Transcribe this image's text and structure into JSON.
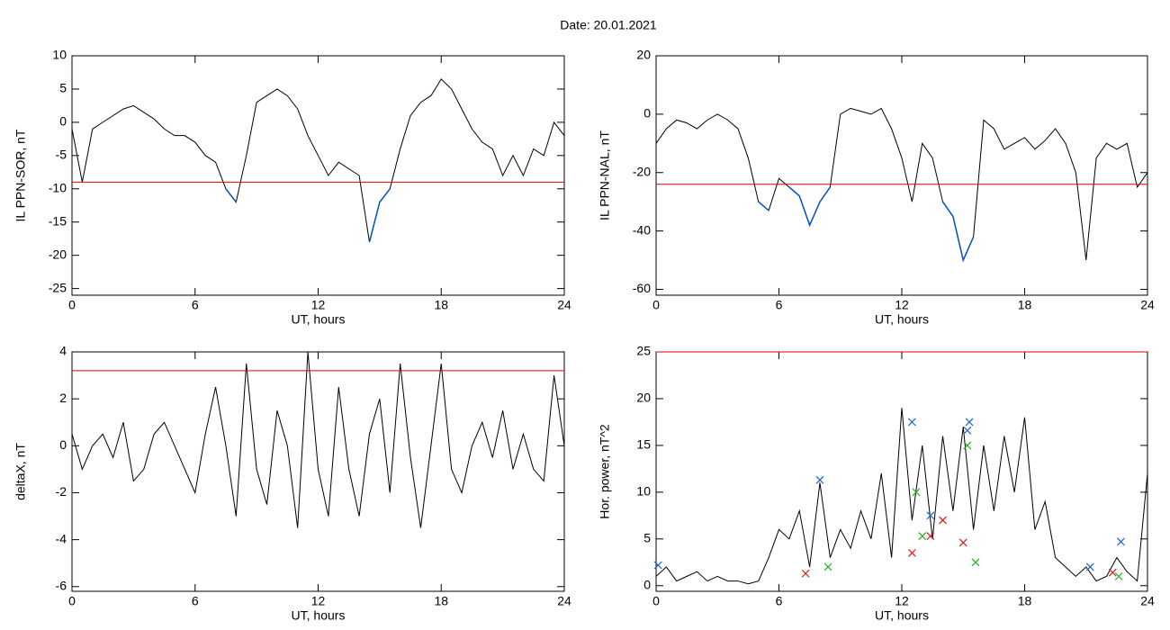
{
  "title": "Date:  20.01.2021",
  "chart_data": [
    {
      "type": "line",
      "ylabel": "IL PPN-SOR, nT",
      "xlabel": "UT, hours",
      "xlim": [
        0,
        24
      ],
      "xticks": [
        0,
        6,
        12,
        18,
        24
      ],
      "ylim": [
        -26,
        10
      ],
      "yticks": [
        -25,
        -20,
        -15,
        -10,
        -5,
        0,
        5,
        10
      ],
      "color": "#000000",
      "below_color": "#0050d0",
      "threshold": -9,
      "threshold_color": "#e00000",
      "x": [
        0,
        0.5,
        1,
        1.5,
        2,
        2.5,
        3,
        3.5,
        4,
        4.5,
        5,
        5.5,
        6,
        6.5,
        7,
        7.5,
        8,
        8.5,
        9,
        9.5,
        10,
        10.5,
        11,
        11.5,
        12,
        12.5,
        13,
        13.5,
        14,
        14.5,
        15,
        15.5,
        16,
        16.5,
        17,
        17.5,
        18,
        18.5,
        19,
        19.5,
        20,
        20.5,
        21,
        21.5,
        22,
        22.5,
        23,
        23.5,
        24
      ],
      "values": [
        -1,
        -9,
        -1,
        0,
        1,
        2,
        2.5,
        1.5,
        0.5,
        -1,
        -2,
        -2,
        -3,
        -5,
        -6,
        -10,
        -12,
        -5,
        3,
        4,
        5,
        4,
        2,
        -2,
        -5,
        -8,
        -6,
        -7,
        -8,
        -18,
        -12,
        -10,
        -4,
        1,
        3,
        4,
        6.5,
        5,
        2,
        -1,
        -3,
        -4,
        -8,
        -5,
        -8,
        -4,
        -5,
        0,
        -2
      ]
    },
    {
      "type": "line",
      "ylabel": "IL PPN-NAL, nT",
      "xlabel": "UT, hours",
      "xlim": [
        0,
        24
      ],
      "xticks": [
        0,
        6,
        12,
        18,
        24
      ],
      "ylim": [
        -62,
        20
      ],
      "yticks": [
        -60,
        -40,
        -20,
        0,
        20
      ],
      "color": "#000000",
      "below_color": "#0050d0",
      "threshold": -24,
      "threshold_color": "#e00000",
      "x": [
        0,
        0.5,
        1,
        1.5,
        2,
        2.5,
        3,
        3.5,
        4,
        4.5,
        5,
        5.5,
        6,
        6.5,
        7,
        7.5,
        8,
        8.5,
        9,
        9.5,
        10,
        10.5,
        11,
        11.5,
        12,
        12.5,
        13,
        13.5,
        14,
        14.5,
        15,
        15.5,
        16,
        16.5,
        17,
        17.5,
        18,
        18.5,
        19,
        19.5,
        20,
        20.5,
        21,
        21.5,
        22,
        22.5,
        23,
        23.5,
        24
      ],
      "values": [
        -10,
        -5,
        -2,
        -3,
        -5,
        -2,
        0,
        -2,
        -5,
        -15,
        -30,
        -33,
        -22,
        -25,
        -28,
        -38,
        -30,
        -25,
        0,
        2,
        1,
        0,
        2,
        -5,
        -15,
        -30,
        -10,
        -15,
        -30,
        -35,
        -50,
        -42,
        -2,
        -5,
        -12,
        -10,
        -8,
        -12,
        -9,
        -5,
        -10,
        -20,
        -50,
        -15,
        -10,
        -12,
        -10,
        -25,
        -20
      ]
    },
    {
      "type": "line",
      "ylabel": "deltaX, nT",
      "xlabel": "UT, hours",
      "xlim": [
        0,
        24
      ],
      "xticks": [
        0,
        6,
        12,
        18,
        24
      ],
      "ylim": [
        -6.2,
        4
      ],
      "yticks": [
        -6,
        -4,
        -2,
        0,
        2,
        4
      ],
      "color": "#000000",
      "threshold": 3.2,
      "threshold_color": "#e00000",
      "x": [
        0,
        0.5,
        1,
        1.5,
        2,
        2.5,
        3,
        3.5,
        4,
        4.5,
        5,
        5.5,
        6,
        6.5,
        7,
        7.5,
        8,
        8.5,
        9,
        9.5,
        10,
        10.5,
        11,
        11.5,
        12,
        12.5,
        13,
        13.5,
        14,
        14.5,
        15,
        15.5,
        16,
        16.5,
        17,
        17.5,
        18,
        18.5,
        19,
        19.5,
        20,
        20.5,
        21,
        21.5,
        22,
        22.5,
        23,
        23.5,
        24
      ],
      "values": [
        0.5,
        -1,
        0,
        0.5,
        -0.5,
        1,
        -1.5,
        -1,
        0.5,
        1,
        0,
        -1,
        -2,
        0.5,
        2.5,
        0,
        -3,
        3.5,
        -1,
        -2.5,
        1.5,
        0,
        -3.5,
        4,
        -1,
        -3,
        2.5,
        -1,
        -3,
        0.5,
        2,
        -2,
        3.5,
        -0.5,
        -3.5,
        0,
        3.5,
        -1,
        -2,
        0,
        1,
        -0.5,
        1.5,
        -1,
        0.5,
        -1,
        -1.5,
        3,
        0
      ]
    },
    {
      "type": "line",
      "ylabel": "Hor. power, nT^2",
      "xlabel": "UT, hours",
      "xlim": [
        0,
        24
      ],
      "xticks": [
        0,
        6,
        12,
        18,
        24
      ],
      "ylim": [
        -0.6,
        25
      ],
      "yticks": [
        0,
        5,
        10,
        15,
        20,
        25
      ],
      "color": "#000000",
      "threshold": 25,
      "threshold_color": "#e00000",
      "x": [
        0,
        0.5,
        1,
        1.5,
        2,
        2.5,
        3,
        3.5,
        4,
        4.5,
        5,
        5.5,
        6,
        6.5,
        7,
        7.5,
        8,
        8.5,
        9,
        9.5,
        10,
        10.5,
        11,
        11.5,
        12,
        12.5,
        13,
        13.5,
        14,
        14.5,
        15,
        15.5,
        16,
        16.5,
        17,
        17.5,
        18,
        18.5,
        19,
        19.5,
        20,
        20.5,
        21,
        21.5,
        22,
        22.5,
        23,
        23.5,
        24
      ],
      "values": [
        1,
        2,
        0.5,
        1,
        1.5,
        0.5,
        1,
        0.5,
        0.5,
        0.2,
        0.5,
        3,
        6,
        5,
        8,
        2,
        11,
        3,
        6,
        4,
        8,
        5,
        12,
        3,
        19,
        7,
        15,
        5,
        16,
        8,
        17,
        6,
        15,
        8,
        16,
        10,
        18,
        6,
        9,
        3,
        2,
        1,
        2,
        0.5,
        1,
        3,
        1.5,
        0.5,
        12
      ],
      "markers": [
        {
          "color": "#2060d0",
          "x": [
            0.1,
            8,
            12.5,
            13.4,
            15.2,
            15.3,
            21.2,
            22.7
          ],
          "y": [
            2.2,
            11.3,
            17.5,
            7.5,
            16.6,
            17.5,
            2,
            4.7
          ]
        },
        {
          "color": "#20b020",
          "x": [
            8.4,
            12.7,
            13,
            15.2,
            15.6,
            22.6
          ],
          "y": [
            2,
            10,
            5.3,
            15,
            2.5,
            1
          ]
        },
        {
          "color": "#d02020",
          "x": [
            7.3,
            12.5,
            13.4,
            14,
            15,
            22.3
          ],
          "y": [
            1.3,
            3.5,
            5.3,
            7,
            4.6,
            1.4
          ]
        }
      ]
    }
  ]
}
